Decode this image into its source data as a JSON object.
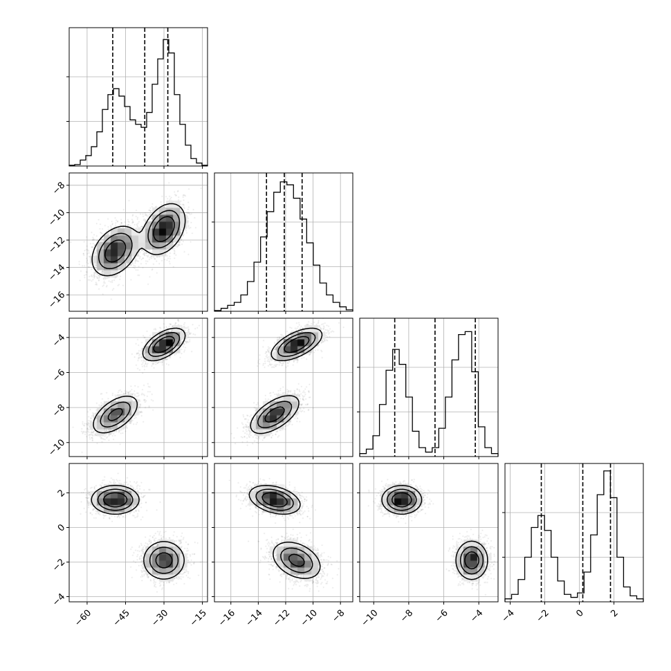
{
  "chart_data": {
    "type": "corner",
    "description_free": true,
    "parameters": [
      {
        "index": 0,
        "range": [
          -67,
          -13
        ],
        "ticks": [
          -60,
          -45,
          -30,
          -15
        ],
        "tick_labels": [
          "−60",
          "−45",
          "−30",
          "−15"
        ],
        "quantiles": [
          -50.0,
          -37.5,
          -28.5
        ],
        "hist": [
          0.005,
          0.01,
          0.04,
          0.07,
          0.13,
          0.23,
          0.38,
          0.48,
          0.52,
          0.47,
          0.4,
          0.31,
          0.28,
          0.26,
          0.36,
          0.55,
          0.72,
          0.85,
          0.76,
          0.48,
          0.28,
          0.14,
          0.05,
          0.02,
          0.005
        ]
      },
      {
        "index": 1,
        "range": [
          -17.2,
          -7.1
        ],
        "ticks": [
          -16,
          -14,
          -12,
          -10,
          -8
        ],
        "tick_labels": [
          "−16",
          "−14",
          "−12",
          "−10",
          "−8"
        ],
        "quantiles": [
          -13.4,
          -12.1,
          -10.8
        ],
        "hist": [
          0.005,
          0.02,
          0.04,
          0.06,
          0.11,
          0.2,
          0.33,
          0.5,
          0.67,
          0.8,
          0.87,
          0.85,
          0.76,
          0.62,
          0.46,
          0.31,
          0.19,
          0.11,
          0.06,
          0.03,
          0.01
        ]
      },
      {
        "index": 2,
        "range": [
          -10.8,
          -2.9
        ],
        "ticks": [
          -10,
          -8,
          -6,
          -4
        ],
        "tick_labels": [
          "−10",
          "−8",
          "−6",
          "−4"
        ],
        "quantiles": [
          -8.8,
          -6.5,
          -4.2
        ],
        "hist": [
          0.02,
          0.05,
          0.14,
          0.35,
          0.58,
          0.72,
          0.62,
          0.4,
          0.17,
          0.06,
          0.03,
          0.06,
          0.19,
          0.4,
          0.65,
          0.82,
          0.84,
          0.57,
          0.2,
          0.06,
          0.02
        ]
      },
      {
        "index": 3,
        "range": [
          -4.3,
          3.7
        ],
        "ticks": [
          -4,
          -2,
          0,
          2
        ],
        "tick_labels": [
          "−4",
          "−2",
          "0",
          "2"
        ],
        "quantiles": [
          -2.2,
          0.2,
          1.8
        ],
        "hist": [
          0.02,
          0.05,
          0.15,
          0.3,
          0.5,
          0.58,
          0.48,
          0.3,
          0.14,
          0.05,
          0.03,
          0.06,
          0.2,
          0.45,
          0.72,
          0.88,
          0.7,
          0.3,
          0.1,
          0.04,
          0.02
        ]
      }
    ],
    "mixture_modes": [
      {
        "mean": [
          -49,
          -12.8,
          -8.4,
          1.6
        ],
        "sd": [
          4.5,
          0.9,
          0.55,
          0.4
        ],
        "weight": 0.5
      },
      {
        "mean": [
          -30,
          -11.2,
          -4.4,
          -1.9
        ],
        "sd": [
          4.0,
          0.9,
          0.45,
          0.55
        ],
        "weight": 0.5
      }
    ],
    "correlations": {
      "0-1": 0.35,
      "0-2": 0.55,
      "0-3": 0.0,
      "1-2": 0.6,
      "1-3": -0.35,
      "2-3": 0.0
    },
    "contour_levels": [
      0.39,
      0.86,
      1.39
    ],
    "grid": true,
    "legend": false,
    "title": "",
    "axis_labels": []
  },
  "style": {
    "line_color": "#000000",
    "grid_color": "#b0b0b0",
    "point_color": "#555555",
    "background": "#ffffff"
  }
}
